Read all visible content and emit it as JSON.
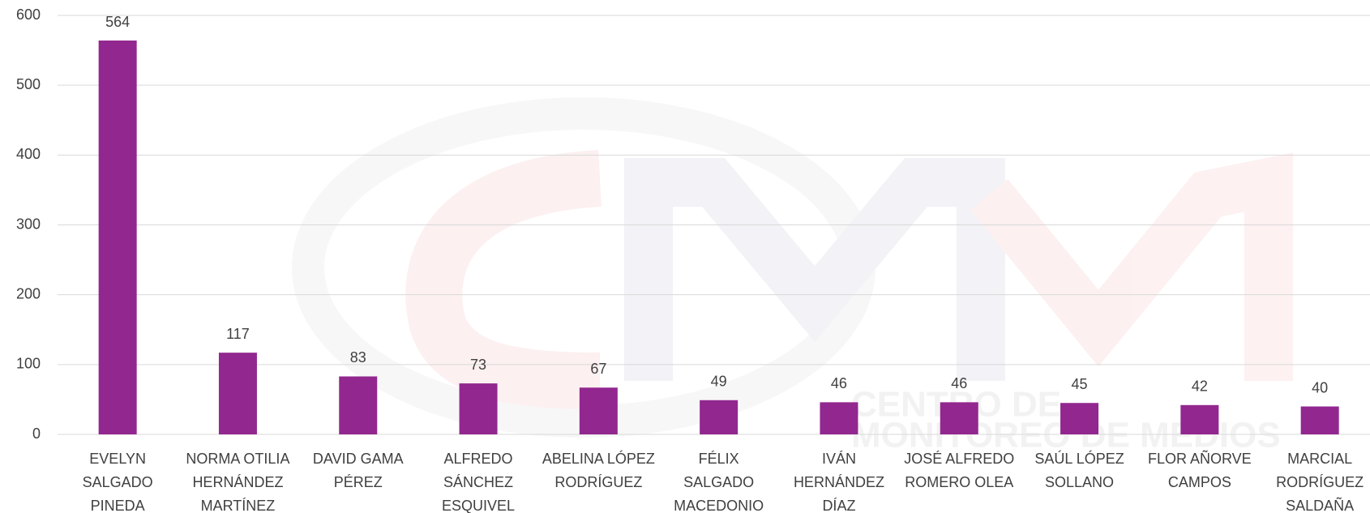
{
  "chart_data": {
    "type": "bar",
    "categories": [
      "EVELYN SALGADO PINEDA",
      "NORMA OTILIA HERNÁNDEZ MARTÍNEZ",
      "DAVID GAMA PÉREZ",
      "ALFREDO SÁNCHEZ ESQUIVEL",
      "ABELINA LÓPEZ RODRÍGUEZ",
      "FÉLIX SALGADO MACEDONIO",
      "IVÁN HERNÁNDEZ DÍAZ",
      "JOSÉ ALFREDO ROMERO OLEA",
      "SAÚL LÓPEZ SOLLANO",
      "FLOR AÑORVE CAMPOS",
      "MARCIAL RODRÍGUEZ SALDAÑA"
    ],
    "values": [
      564,
      117,
      83,
      73,
      67,
      49,
      46,
      46,
      45,
      42,
      40
    ],
    "color": "#92278f",
    "ylim": [
      0,
      600
    ],
    "yticks": [
      0,
      100,
      200,
      300,
      400,
      500,
      600
    ],
    "grid": true,
    "watermark": [
      "CENTRO DE",
      "MONITOREO DE MEDIOS"
    ]
  }
}
